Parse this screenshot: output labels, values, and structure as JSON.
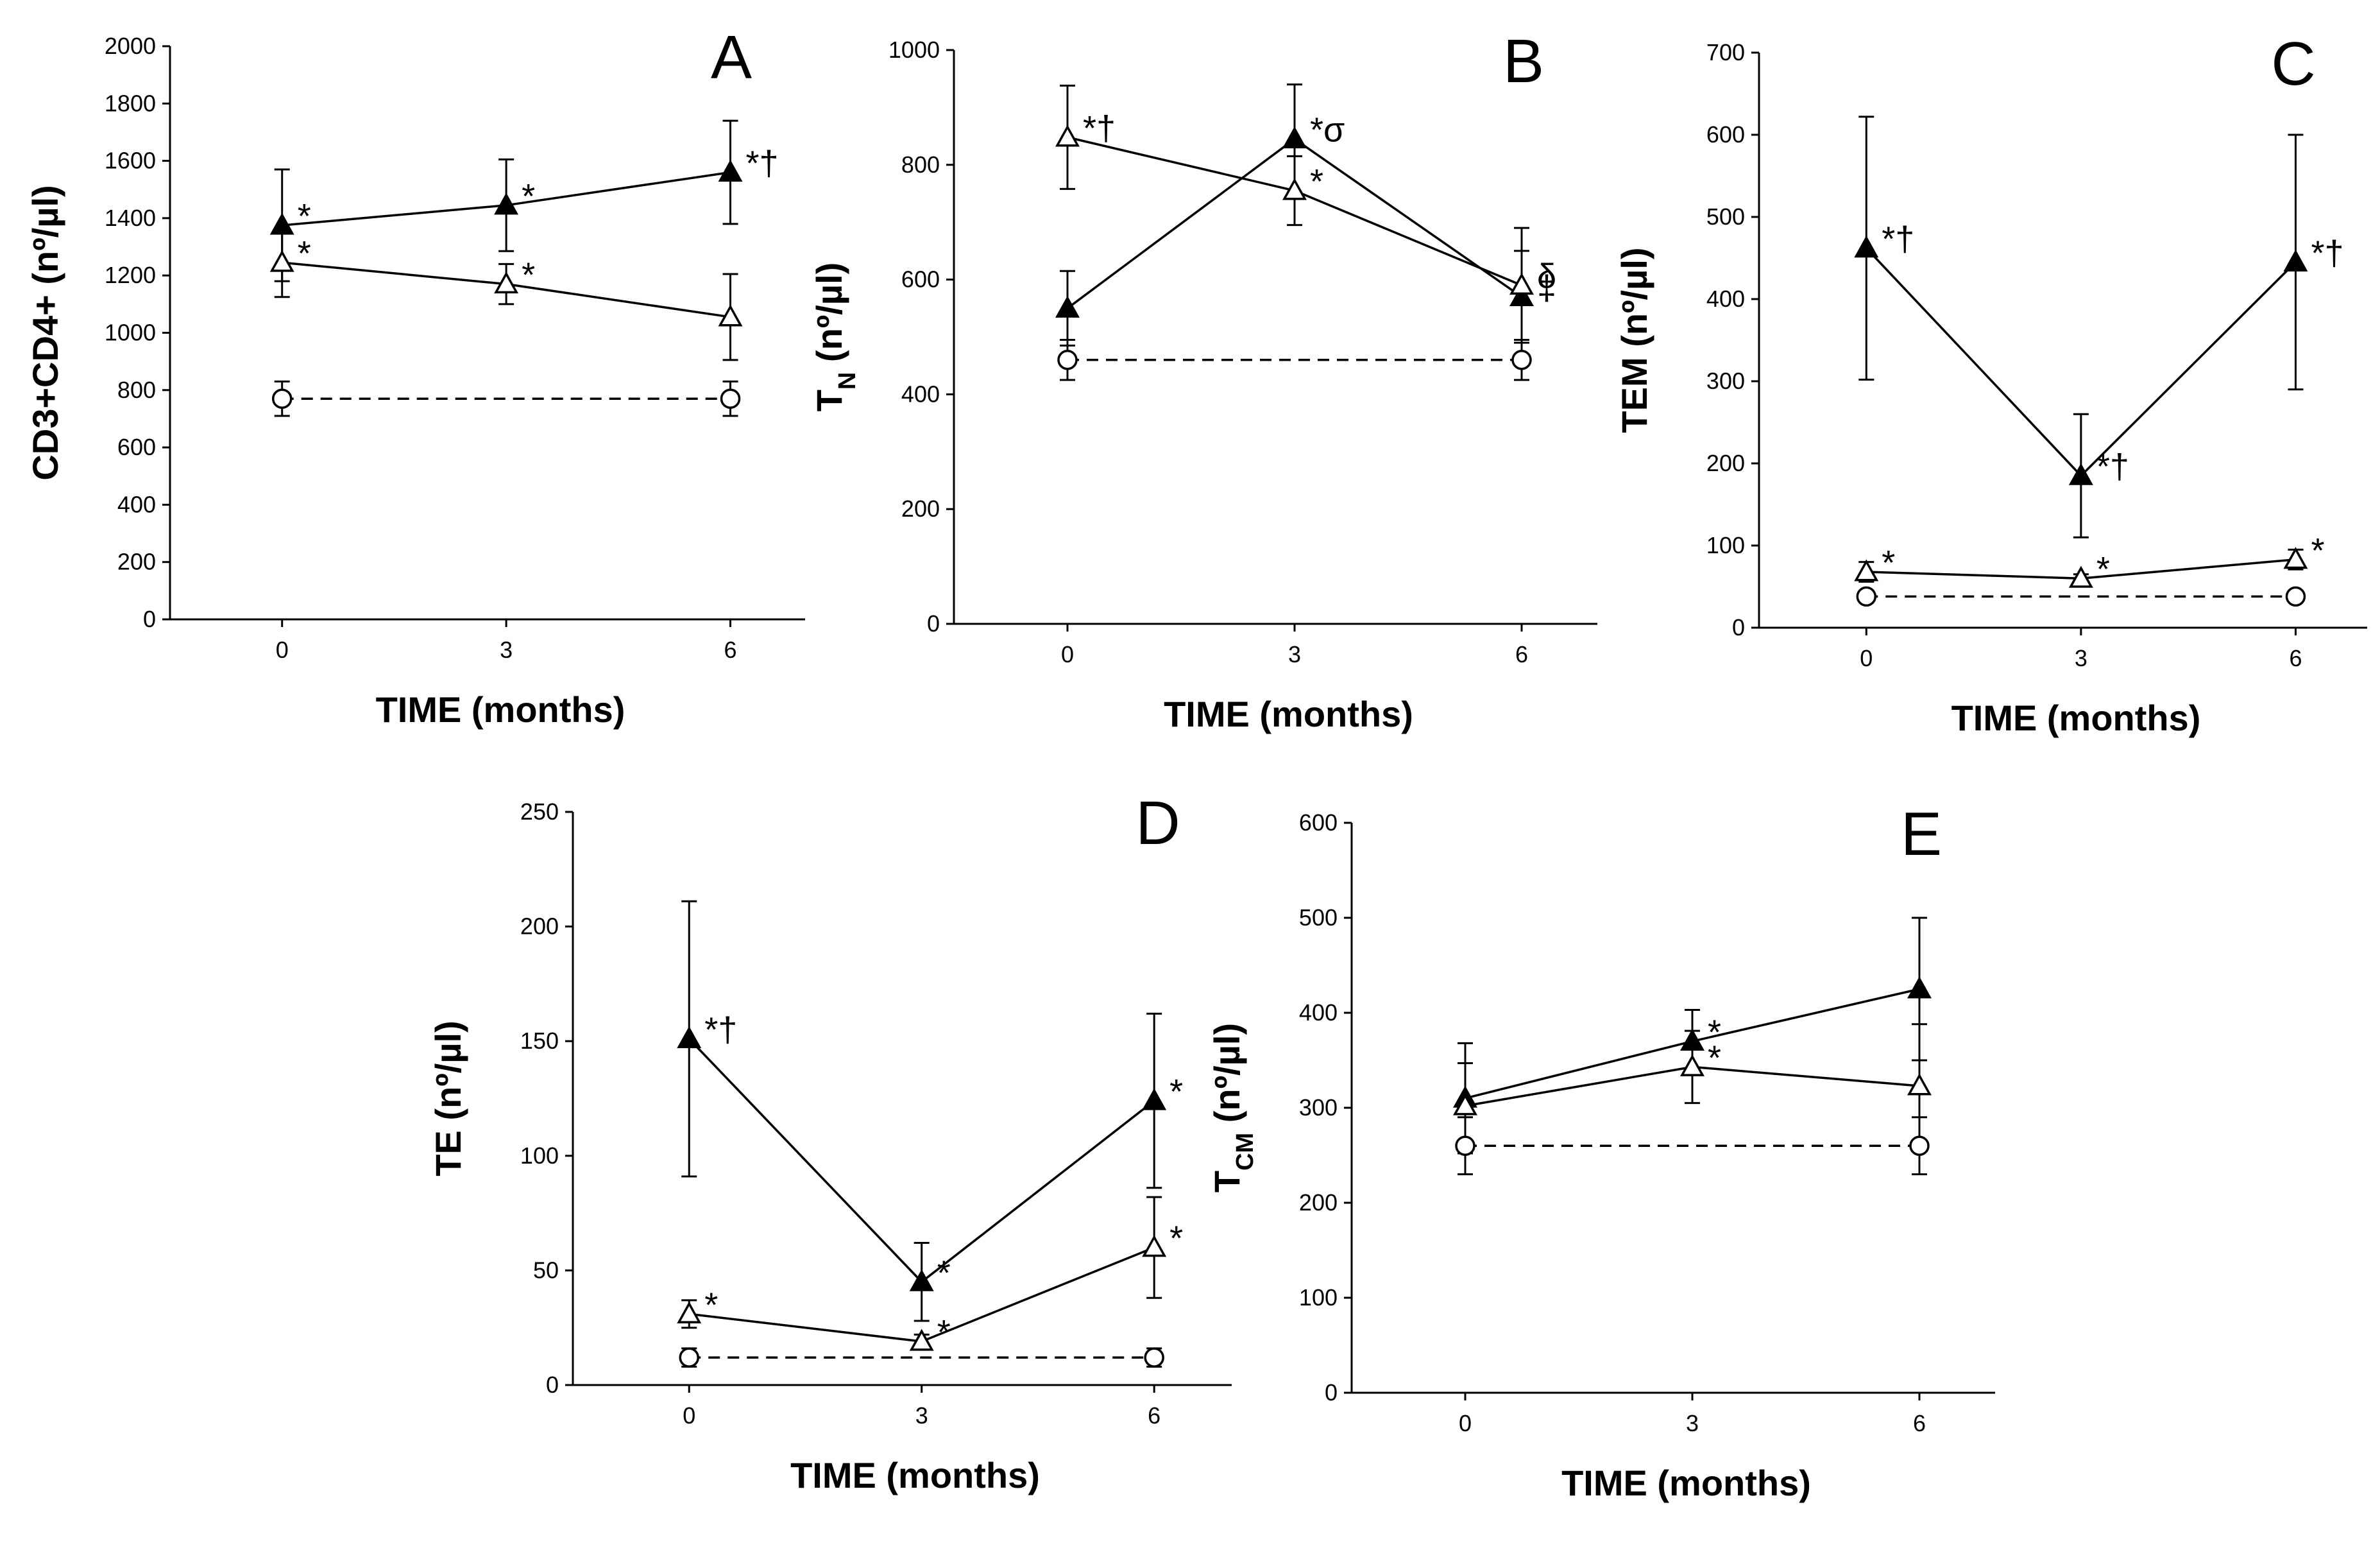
{
  "chart_data": [
    {
      "type": "line",
      "panel": "A",
      "title": "A",
      "xlabel": "TIME (months)",
      "ylabel": "CD3+CD4+ (nº/µl)",
      "x": [
        0,
        3,
        6
      ],
      "xticks": [
        "0",
        "3",
        "6"
      ],
      "xlim": [
        -1.5,
        7
      ],
      "ylim": [
        0,
        2000
      ],
      "yticks": [
        0,
        200,
        400,
        600,
        800,
        1000,
        1200,
        1400,
        1600,
        1800,
        2000
      ],
      "series": [
        {
          "name": "filled-triangle",
          "marker": "filled-triangle",
          "dashed": false,
          "values": [
            1375,
            1445,
            1560
          ],
          "err": [
            195,
            160,
            180
          ],
          "labels": [
            "*",
            "*",
            "*†"
          ]
        },
        {
          "name": "open-triangle",
          "marker": "open-triangle",
          "dashed": false,
          "values": [
            1245,
            1170,
            1055
          ],
          "err": [
            120,
            70,
            150
          ],
          "labels": [
            "*",
            "*",
            ""
          ]
        },
        {
          "name": "open-circle",
          "marker": "open-circle",
          "dashed": true,
          "values": [
            770,
            null,
            770
          ],
          "err": [
            60,
            null,
            60
          ],
          "labels": [
            "",
            "",
            ""
          ]
        }
      ]
    },
    {
      "type": "line",
      "panel": "B",
      "title": "B",
      "xlabel": "TIME (months)",
      "ylabel": "T",
      "ylabel_sub": "N",
      "ylabel_rest": " (nº/µl)",
      "x": [
        0,
        3,
        6
      ],
      "xticks": [
        "0",
        "3",
        "6"
      ],
      "xlim": [
        -1.5,
        7
      ],
      "ylim": [
        0,
        1000
      ],
      "yticks": [
        0,
        200,
        400,
        600,
        800,
        1000
      ],
      "series": [
        {
          "name": "filled-triangle",
          "marker": "filled-triangle",
          "dashed": false,
          "values": [
            550,
            845,
            570
          ],
          "err": [
            65,
            95,
            80
          ],
          "labels": [
            "",
            "*σ",
            "‡"
          ]
        },
        {
          "name": "open-triangle",
          "marker": "open-triangle",
          "dashed": false,
          "values": [
            848,
            755,
            590
          ],
          "err": [
            90,
            60,
            100
          ],
          "labels": [
            "*†",
            "*",
            "δ"
          ]
        },
        {
          "name": "open-circle",
          "marker": "open-circle",
          "dashed": true,
          "values": [
            460,
            null,
            460
          ],
          "err": [
            35,
            null,
            35
          ],
          "labels": [
            "",
            "",
            ""
          ]
        }
      ]
    },
    {
      "type": "line",
      "panel": "C",
      "title": "C",
      "xlabel": "TIME (months)",
      "ylabel": "TEM (nº/µl)",
      "x": [
        0,
        3,
        6
      ],
      "xticks": [
        "0",
        "3",
        "6"
      ],
      "xlim": [
        -1.5,
        7
      ],
      "ylim": [
        0,
        700
      ],
      "yticks": [
        0,
        100,
        200,
        300,
        400,
        500,
        600,
        700
      ],
      "series": [
        {
          "name": "filled-triangle",
          "marker": "filled-triangle",
          "dashed": false,
          "values": [
            462,
            185,
            445
          ],
          "err": [
            160,
            75,
            155
          ],
          "labels": [
            "*†",
            "*†",
            "*†"
          ]
        },
        {
          "name": "open-triangle",
          "marker": "open-triangle",
          "dashed": false,
          "values": [
            68,
            60,
            83
          ],
          "err": [
            12,
            5,
            12
          ],
          "labels": [
            "*",
            "*",
            "*"
          ]
        },
        {
          "name": "open-circle",
          "marker": "open-circle",
          "dashed": true,
          "values": [
            38,
            null,
            38
          ],
          "err": [
            6,
            null,
            6
          ],
          "labels": [
            "",
            "",
            ""
          ]
        }
      ]
    },
    {
      "type": "line",
      "panel": "D",
      "title": "D",
      "xlabel": "TIME (months)",
      "ylabel": "TE (nº/µl)",
      "x": [
        0,
        3,
        6
      ],
      "xticks": [
        "0",
        "3",
        "6"
      ],
      "xlim": [
        -1.5,
        7
      ],
      "ylim": [
        0,
        250
      ],
      "yticks": [
        0,
        50,
        100,
        150,
        200,
        250
      ],
      "series": [
        {
          "name": "filled-triangle",
          "marker": "filled-triangle",
          "dashed": false,
          "values": [
            151,
            45,
            124
          ],
          "err": [
            60,
            17,
            38
          ],
          "labels": [
            "*†",
            "*",
            "*"
          ]
        },
        {
          "name": "open-triangle",
          "marker": "open-triangle",
          "dashed": false,
          "values": [
            31,
            19,
            60
          ],
          "err": [
            6,
            3,
            22
          ],
          "labels": [
            "*",
            "*",
            "*"
          ]
        },
        {
          "name": "open-circle",
          "marker": "open-circle",
          "dashed": true,
          "values": [
            12,
            null,
            12
          ],
          "err": [
            4,
            null,
            4
          ],
          "labels": [
            "",
            "",
            ""
          ]
        }
      ]
    },
    {
      "type": "line",
      "panel": "E",
      "title": "E",
      "xlabel": "TIME (months)",
      "ylabel": "T",
      "ylabel_sub": "CM",
      "ylabel_rest": " (nº/µl)",
      "x": [
        0,
        3,
        6
      ],
      "xticks": [
        "0",
        "3",
        "6"
      ],
      "xlim": [
        -1.5,
        7
      ],
      "ylim": [
        0,
        600
      ],
      "yticks": [
        0,
        100,
        200,
        300,
        400,
        500,
        600
      ],
      "series": [
        {
          "name": "filled-triangle",
          "marker": "filled-triangle",
          "dashed": false,
          "values": [
            310,
            370,
            425
          ],
          "err": [
            58,
            33,
            75
          ],
          "labels": [
            "",
            "*",
            ""
          ]
        },
        {
          "name": "open-triangle",
          "marker": "open-triangle",
          "dashed": false,
          "values": [
            302,
            343,
            323
          ],
          "err": [
            45,
            38,
            65
          ],
          "labels": [
            "",
            "*",
            ""
          ]
        },
        {
          "name": "open-circle",
          "marker": "open-circle",
          "dashed": true,
          "values": [
            260,
            null,
            260
          ],
          "err": [
            30,
            null,
            30
          ],
          "labels": [
            "",
            "",
            ""
          ]
        }
      ]
    }
  ]
}
